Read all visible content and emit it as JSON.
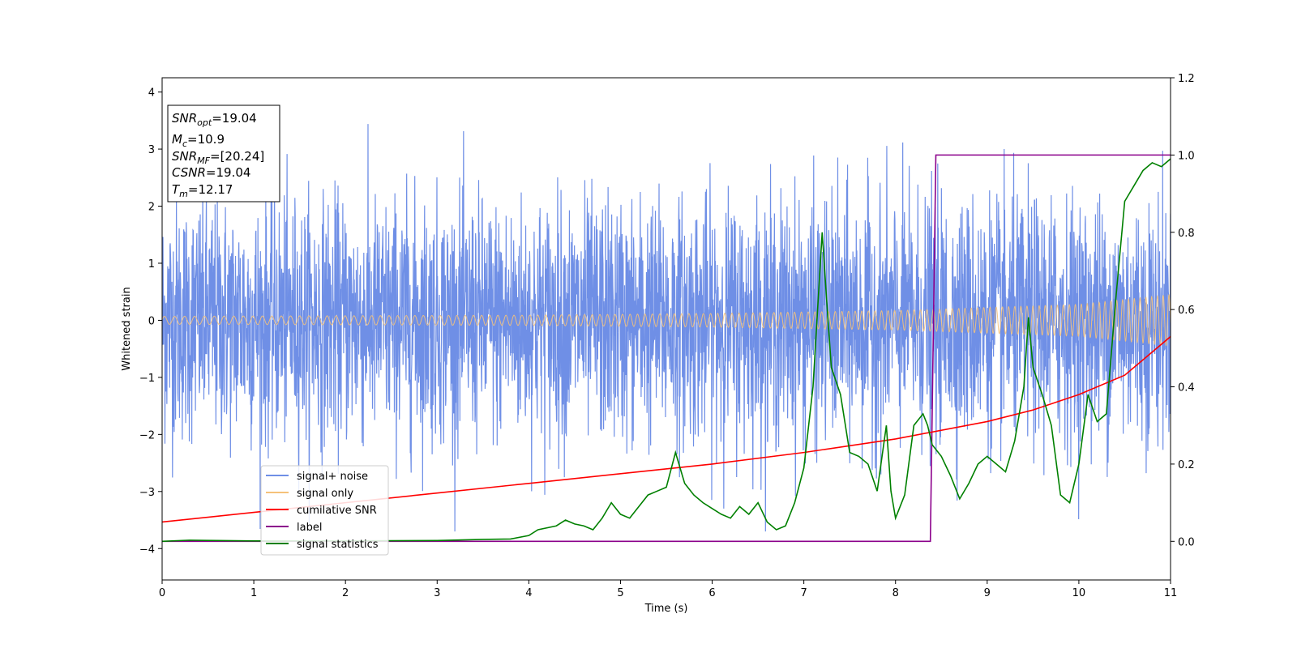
{
  "chart_data": {
    "type": "line",
    "xlabel": "Time (s)",
    "ylabel": "Whitened strain",
    "xlim": [
      0,
      11
    ],
    "ylim_left": [
      -4.55,
      4.25
    ],
    "ylim_right": [
      -0.1,
      1.2
    ],
    "x_ticks": [
      "0",
      "1",
      "2",
      "3",
      "4",
      "5",
      "6",
      "7",
      "8",
      "9",
      "10",
      "11"
    ],
    "y_ticks_left": [
      "−4",
      "−3",
      "−2",
      "−1",
      "0",
      "1",
      "2",
      "3",
      "4"
    ],
    "y_ticks_right": [
      "0.0",
      "0.2",
      "0.4",
      "0.6",
      "0.8",
      "1.0",
      "1.2"
    ],
    "grid": false,
    "legend_placement": "lower-left",
    "series": [
      {
        "name": "signal+ noise",
        "axis": "left",
        "color": "#6f8fe6",
        "description_values": "noise-dominated whitened strain, amplitude roughly between -3.7 and 3.85"
      },
      {
        "name": "signal only",
        "axis": "left",
        "color": "#f5c27a",
        "envelope": {
          "t": [
            0,
            2,
            4,
            6,
            8,
            10,
            11
          ],
          "amp": [
            0.07,
            0.08,
            0.09,
            0.12,
            0.17,
            0.28,
            0.45
          ]
        },
        "frequency": {
          "t_start": 0,
          "f_start": 9,
          "t_end": 11,
          "f_end": 16
        }
      },
      {
        "name": "cumilative SNR",
        "axis": "right",
        "color": "#ff0000",
        "x": [
          0,
          1,
          2,
          3,
          4,
          5,
          6,
          7,
          8,
          9,
          9.5,
          10,
          10.5,
          11
        ],
        "y": [
          0.05,
          0.075,
          0.1,
          0.125,
          0.15,
          0.175,
          0.2,
          0.23,
          0.265,
          0.31,
          0.34,
          0.38,
          0.43,
          0.53
        ]
      },
      {
        "name": "label",
        "axis": "right",
        "color": "#8b008b",
        "x": [
          0,
          8.38,
          8.44,
          11
        ],
        "y": [
          0,
          0,
          1,
          1
        ]
      },
      {
        "name": "signal statistics",
        "axis": "right",
        "color": "#008000",
        "x": [
          0,
          0.3,
          0.6,
          1,
          2,
          3,
          3.5,
          3.8,
          4.0,
          4.1,
          4.3,
          4.4,
          4.5,
          4.6,
          4.7,
          4.8,
          4.9,
          5.0,
          5.1,
          5.2,
          5.3,
          5.4,
          5.5,
          5.6,
          5.7,
          5.8,
          5.9,
          6.0,
          6.1,
          6.2,
          6.3,
          6.4,
          6.5,
          6.6,
          6.7,
          6.8,
          6.9,
          7.0,
          7.1,
          7.15,
          7.2,
          7.25,
          7.3,
          7.4,
          7.5,
          7.6,
          7.7,
          7.8,
          7.9,
          7.95,
          8.0,
          8.1,
          8.2,
          8.3,
          8.35,
          8.4,
          8.5,
          8.6,
          8.7,
          8.8,
          8.9,
          9.0,
          9.1,
          9.2,
          9.3,
          9.4,
          9.45,
          9.5,
          9.6,
          9.7,
          9.8,
          9.9,
          10.0,
          10.1,
          10.2,
          10.3,
          10.4,
          10.5,
          10.6,
          10.7,
          10.8,
          10.9,
          11.0
        ],
        "y": [
          0.0,
          0.003,
          0.002,
          0.001,
          0.001,
          0.002,
          0.005,
          0.006,
          0.015,
          0.03,
          0.04,
          0.055,
          0.045,
          0.04,
          0.03,
          0.06,
          0.1,
          0.07,
          0.06,
          0.09,
          0.12,
          0.13,
          0.14,
          0.23,
          0.15,
          0.12,
          0.1,
          0.085,
          0.07,
          0.06,
          0.09,
          0.07,
          0.1,
          0.05,
          0.03,
          0.04,
          0.1,
          0.19,
          0.4,
          0.6,
          0.8,
          0.62,
          0.45,
          0.38,
          0.23,
          0.22,
          0.2,
          0.13,
          0.3,
          0.13,
          0.06,
          0.12,
          0.3,
          0.33,
          0.3,
          0.25,
          0.22,
          0.17,
          0.11,
          0.15,
          0.2,
          0.22,
          0.2,
          0.18,
          0.26,
          0.4,
          0.58,
          0.45,
          0.38,
          0.3,
          0.12,
          0.1,
          0.2,
          0.38,
          0.31,
          0.33,
          0.62,
          0.88,
          0.92,
          0.96,
          0.98,
          0.97,
          0.99
        ]
      }
    ],
    "annotation": {
      "lines": [
        {
          "sym": "SNR",
          "sub": "opt",
          "val": "=19.04"
        },
        {
          "sym": "M",
          "sub": "c",
          "val": "=10.9"
        },
        {
          "sym": "SNR",
          "sub": "MF",
          "val": "=[20.24]"
        },
        {
          "sym": "CSNR",
          "sub": "",
          "val": "=19.04"
        },
        {
          "sym": "T",
          "sub": "m",
          "val": "=12.17"
        }
      ]
    }
  }
}
